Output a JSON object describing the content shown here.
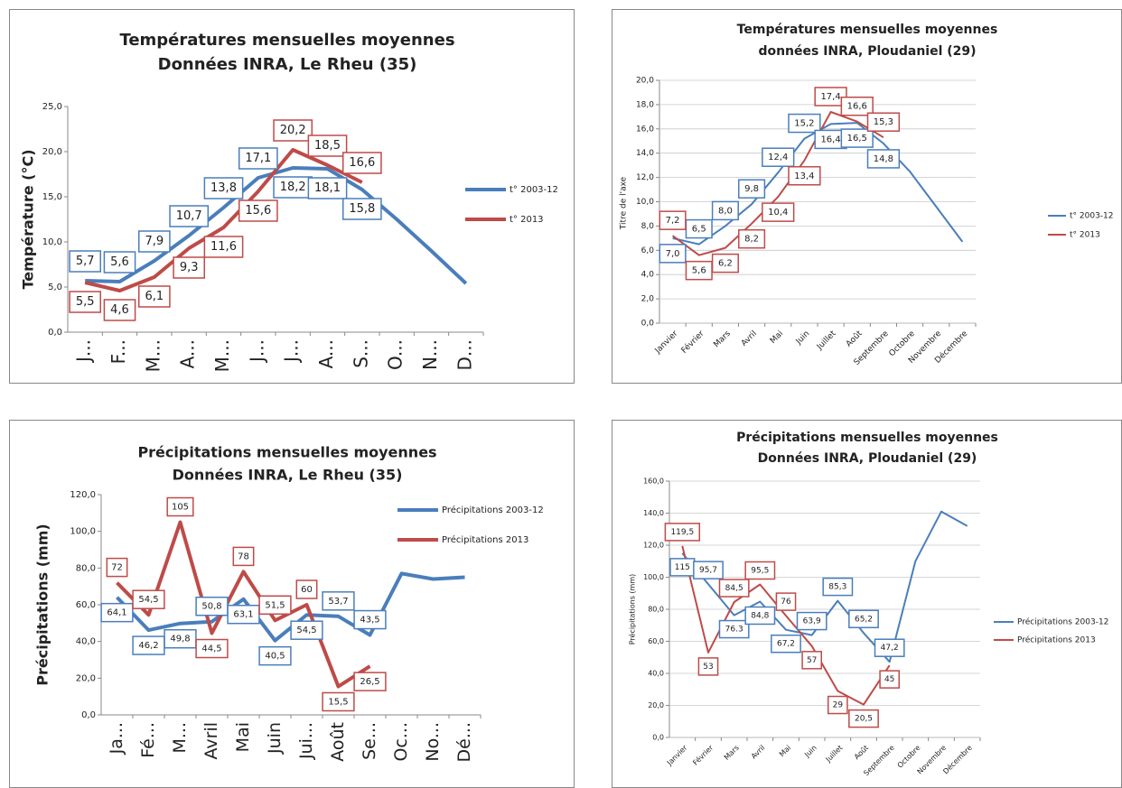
{
  "chart_data": [
    {
      "type": "line",
      "title": "Températures mensuelles moyennes",
      "subtitle": "Données INRA, Le Rheu (35)",
      "y_label": "Température (°C)",
      "categories": [
        "J...",
        "F...",
        "M...",
        "A...",
        "M...",
        "J...",
        "J...",
        "A...",
        "S...",
        "O...",
        "N...",
        "D..."
      ],
      "ylim": [
        0,
        25
      ],
      "yticks": [
        {
          "value": 0,
          "label": "0,0"
        },
        {
          "value": 5,
          "label": "5,0"
        },
        {
          "value": 10,
          "label": "10,0"
        },
        {
          "value": 15,
          "label": "15,0"
        },
        {
          "value": 20,
          "label": "20,0"
        },
        {
          "value": 25,
          "label": "25,0"
        }
      ],
      "grid": false,
      "legend": "right",
      "series": [
        {
          "name": "t° 2003-12",
          "color": "#4a7ebb",
          "values": [
            5.7,
            5.6,
            7.9,
            10.7,
            13.8,
            17.1,
            18.2,
            18.1,
            15.8,
            12.5,
            9,
            5.4
          ],
          "value_labels": [
            "5,7",
            "5,6",
            "7,9",
            "10,7",
            "13,8",
            "17,1",
            "18,2",
            "18,1",
            "15,8",
            null,
            null,
            null
          ]
        },
        {
          "name": "t° 2013",
          "color": "#be4b48",
          "values": [
            5.5,
            4.6,
            6.1,
            9.3,
            11.6,
            15.6,
            20.2,
            18.5,
            16.6,
            null,
            null,
            null
          ],
          "value_labels": [
            "5,5",
            "4,6",
            "6,1",
            "9,3",
            "11,6",
            "15,6",
            "20,2",
            "18,5",
            "16,6",
            null,
            null,
            null
          ]
        }
      ]
    },
    {
      "type": "line",
      "title": "Températures mensuelles moyennes",
      "subtitle": "données INRA, Ploudaniel (29)",
      "y_label": "Titre de l'axe",
      "categories": [
        "Janvier",
        "Février",
        "Mars",
        "Avril",
        "Mai",
        "Juin",
        "Juillet",
        "Août",
        "Septembre",
        "Octobre",
        "Novembre",
        "Décembre"
      ],
      "ylim": [
        0,
        20
      ],
      "yticks": [
        {
          "value": 0,
          "label": "0,0"
        },
        {
          "value": 2,
          "label": "2,0"
        },
        {
          "value": 4,
          "label": "4,0"
        },
        {
          "value": 6,
          "label": "6,0"
        },
        {
          "value": 8,
          "label": "8,0"
        },
        {
          "value": 10,
          "label": "10,0"
        },
        {
          "value": 12,
          "label": "12,0"
        },
        {
          "value": 14,
          "label": "14,0"
        },
        {
          "value": 16,
          "label": "16,0"
        },
        {
          "value": 18,
          "label": "18,0"
        },
        {
          "value": 20,
          "label": "20,0"
        }
      ],
      "grid": true,
      "legend": "right",
      "series": [
        {
          "name": "t° 2003-12",
          "color": "#4a7ebb",
          "values": [
            7.0,
            6.5,
            8.0,
            9.8,
            12.4,
            15.2,
            16.4,
            16.5,
            14.8,
            12.5,
            9.6,
            6.7
          ],
          "value_labels": [
            "7,0",
            "6,5",
            "8,0",
            "9,8",
            "12,4",
            "15,2",
            "16,4",
            "16,5",
            "14,8",
            null,
            null,
            null
          ]
        },
        {
          "name": "t° 2013",
          "color": "#be4b48",
          "values": [
            7.2,
            5.6,
            6.2,
            8.2,
            10.4,
            13.4,
            17.4,
            16.6,
            15.3,
            null,
            null,
            null
          ],
          "value_labels": [
            "7,2",
            "5,6",
            "6,2",
            "8,2",
            "10,4",
            "13,4",
            "17,4",
            "16,6",
            "15,3",
            null,
            null,
            null
          ]
        }
      ]
    },
    {
      "type": "line",
      "title": "Précipitations mensuelles moyennes",
      "subtitle": "Données INRA, Le Rheu (35)",
      "y_label": "Précipitations (mm)",
      "categories": [
        "Ja...",
        "Fé...",
        "M...",
        "Avril",
        "Mai",
        "Juin",
        "Jui...",
        "Août",
        "Se...",
        "Oc...",
        "No...",
        "Dé..."
      ],
      "ylim": [
        0,
        120
      ],
      "yticks": [
        {
          "value": 0,
          "label": "0,0"
        },
        {
          "value": 20,
          "label": "20,0"
        },
        {
          "value": 40,
          "label": "40,0"
        },
        {
          "value": 60,
          "label": "60,0"
        },
        {
          "value": 80,
          "label": "80,0"
        },
        {
          "value": 100,
          "label": "100,0"
        },
        {
          "value": 120,
          "label": "120,0"
        }
      ],
      "grid": false,
      "legend": "top-right",
      "series": [
        {
          "name": "Précipitations  2003-12",
          "color": "#4a7ebb",
          "values": [
            64.1,
            46.2,
            49.8,
            50.8,
            63.1,
            40.5,
            54.5,
            53.7,
            43.5,
            77,
            74,
            75
          ],
          "value_labels": [
            "64,1",
            "46,2",
            "49,8",
            "50,8",
            "63,1",
            "40,5",
            "54,5",
            "53,7",
            "43,5",
            null,
            null,
            null
          ]
        },
        {
          "name": "Précipitations  2013",
          "color": "#be4b48",
          "values": [
            72,
            54.5,
            105,
            44.5,
            78,
            51.5,
            60,
            15.5,
            26.5,
            null,
            null,
            null
          ],
          "value_labels": [
            "72",
            "54,5",
            "105",
            "44,5",
            "78",
            "51,5",
            "60",
            "15,5",
            "26,5",
            null,
            null,
            null
          ]
        }
      ]
    },
    {
      "type": "line",
      "title": "Précipitations mensuelles moyennes",
      "subtitle": "Données INRA, Ploudaniel (29)",
      "y_label": "Précipitations (mm)",
      "categories": [
        "Janvier",
        "Février",
        "Mars",
        "Avril",
        "Mai",
        "Juin",
        "Juillet",
        "Août",
        "Septembre",
        "Octobre",
        "Novembre",
        "Décembre"
      ],
      "ylim": [
        0,
        160
      ],
      "yticks": [
        {
          "value": 0,
          "label": "0,0"
        },
        {
          "value": 20,
          "label": "20,0"
        },
        {
          "value": 40,
          "label": "40,0"
        },
        {
          "value": 60,
          "label": "60,0"
        },
        {
          "value": 80,
          "label": "80,0"
        },
        {
          "value": 100,
          "label": "100,0"
        },
        {
          "value": 120,
          "label": "120,0"
        },
        {
          "value": 140,
          "label": "140,0"
        },
        {
          "value": 160,
          "label": "160,0"
        }
      ],
      "grid": true,
      "legend": "right",
      "series": [
        {
          "name": "Précipitations 2003-12",
          "color": "#4a7ebb",
          "values": [
            115,
            95.7,
            76.3,
            84.8,
            67.2,
            63.9,
            85.3,
            65.2,
            47.2,
            110,
            141,
            132
          ],
          "value_labels": [
            "115",
            "95,7",
            "76.3",
            "84,8",
            "67,2",
            "63,9",
            "85,3",
            "65,2",
            "47,2",
            null,
            null,
            null
          ]
        },
        {
          "name": "Précipitations 2013",
          "color": "#be4b48",
          "values": [
            119.5,
            53,
            84.5,
            95.5,
            76,
            57,
            29,
            20.5,
            45,
            null,
            null,
            null
          ],
          "value_labels": [
            "119,5",
            "53",
            "84,5",
            "95,5",
            "76",
            "57",
            "29",
            "20,5",
            "45",
            null,
            null,
            null
          ]
        }
      ]
    }
  ]
}
